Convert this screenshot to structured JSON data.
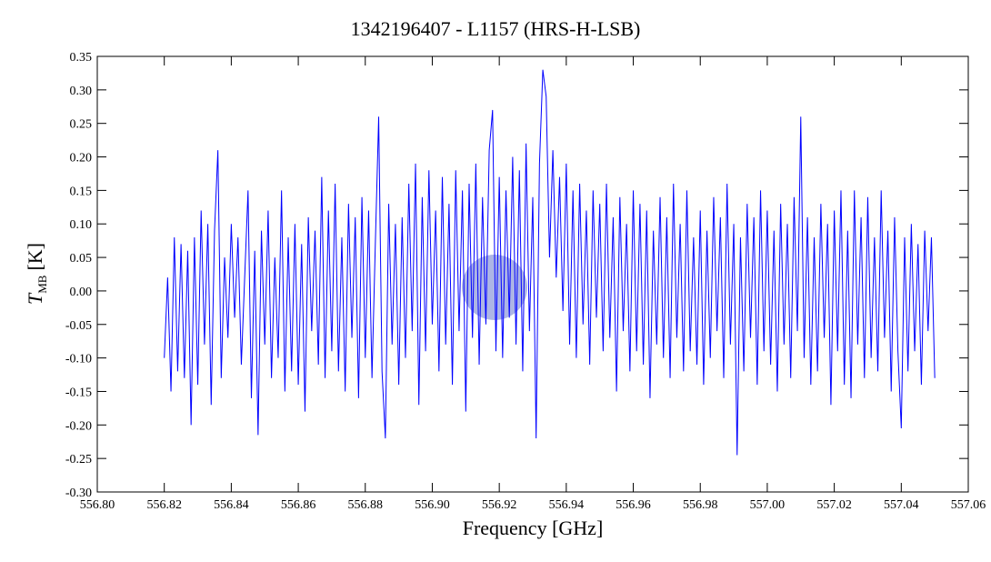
{
  "chart_data": {
    "type": "line",
    "title": "1342196407 - L1157 (HRS-H-LSB)",
    "xlabel": "Frequency [GHz]",
    "ylabel": "T",
    "ylabel_sub": "MB",
    "ylabel_unit": "[K]",
    "xlim": [
      556.8,
      557.06
    ],
    "ylim": [
      -0.3,
      0.35
    ],
    "xticks": [
      {
        "value": 556.8,
        "label": "556.80"
      },
      {
        "value": 556.82,
        "label": "556.82"
      },
      {
        "value": 556.84,
        "label": "556.84"
      },
      {
        "value": 556.86,
        "label": "556.86"
      },
      {
        "value": 556.88,
        "label": "556.88"
      },
      {
        "value": 556.9,
        "label": "556.90"
      },
      {
        "value": 556.92,
        "label": "556.92"
      },
      {
        "value": 556.94,
        "label": "556.94"
      },
      {
        "value": 556.96,
        "label": "556.96"
      },
      {
        "value": 556.98,
        "label": "556.98"
      },
      {
        "value": 557,
        "label": "557.00"
      },
      {
        "value": 557.02,
        "label": "557.02"
      },
      {
        "value": 557.04,
        "label": "557.04"
      },
      {
        "value": 557.06,
        "label": "557.06"
      }
    ],
    "yticks": [
      {
        "value": -0.3,
        "label": "-0.30"
      },
      -0.25,
      {
        "value": -0.2,
        "label": "-0.20"
      },
      -0.15,
      {
        "value": -0.1,
        "label": "-0.10"
      },
      -0.05,
      {
        "value": 0,
        "label": "0.00"
      },
      0.05,
      {
        "value": 0.1,
        "label": "0.10"
      },
      0.15,
      {
        "value": 0.2,
        "label": "0.20"
      },
      0.25,
      {
        "value": 0.3,
        "label": "0.30"
      },
      0.35
    ],
    "x": [
      556.82,
      556.821,
      556.822,
      556.823,
      556.824,
      556.825,
      556.826,
      556.827,
      556.828,
      556.829,
      556.83,
      556.831,
      556.832,
      556.833,
      556.834,
      556.835,
      556.836,
      556.837,
      556.838,
      556.839,
      556.84,
      556.841,
      556.842,
      556.843,
      556.844,
      556.845,
      556.846,
      556.847,
      556.848,
      556.849,
      556.85,
      556.851,
      556.852,
      556.853,
      556.854,
      556.855,
      556.856,
      556.857,
      556.858,
      556.859,
      556.86,
      556.861,
      556.862,
      556.863,
      556.864,
      556.865,
      556.866,
      556.867,
      556.868,
      556.869,
      556.87,
      556.871,
      556.872,
      556.873,
      556.874,
      556.875,
      556.876,
      556.877,
      556.878,
      556.879,
      556.88,
      556.881,
      556.882,
      556.883,
      556.884,
      556.885,
      556.886,
      556.887,
      556.888,
      556.889,
      556.89,
      556.891,
      556.892,
      556.893,
      556.894,
      556.895,
      556.896,
      556.897,
      556.898,
      556.899,
      556.9,
      556.901,
      556.902,
      556.903,
      556.904,
      556.905,
      556.906,
      556.907,
      556.908,
      556.909,
      556.91,
      556.911,
      556.912,
      556.913,
      556.914,
      556.915,
      556.916,
      556.917,
      556.918,
      556.919,
      556.92,
      556.921,
      556.922,
      556.923,
      556.924,
      556.925,
      556.926,
      556.927,
      556.928,
      556.929,
      556.93,
      556.931,
      556.932,
      556.933,
      556.934,
      556.935,
      556.936,
      556.937,
      556.938,
      556.939,
      556.94,
      556.941,
      556.942,
      556.943,
      556.944,
      556.945,
      556.946,
      556.947,
      556.948,
      556.949,
      556.95,
      556.951,
      556.952,
      556.953,
      556.954,
      556.955,
      556.956,
      556.957,
      556.958,
      556.959,
      556.96,
      556.961,
      556.962,
      556.963,
      556.964,
      556.965,
      556.966,
      556.967,
      556.968,
      556.969,
      556.97,
      556.971,
      556.972,
      556.973,
      556.974,
      556.975,
      556.976,
      556.977,
      556.978,
      556.979,
      556.98,
      556.981,
      556.982,
      556.983,
      556.984,
      556.985,
      556.986,
      556.987,
      556.988,
      556.989,
      556.99,
      556.991,
      556.992,
      556.993,
      556.994,
      556.995,
      556.996,
      556.997,
      556.998,
      556.999,
      557,
      557.001,
      557.002,
      557.003,
      557.004,
      557.005,
      557.006,
      557.007,
      557.008,
      557.009,
      557.01,
      557.011,
      557.012,
      557.013,
      557.014,
      557.015,
      557.016,
      557.017,
      557.018,
      557.019,
      557.02,
      557.021,
      557.022,
      557.023,
      557.024,
      557.025,
      557.026,
      557.027,
      557.028,
      557.029,
      557.03,
      557.031,
      557.032,
      557.033,
      557.034,
      557.035,
      557.036,
      557.037,
      557.038,
      557.039,
      557.04,
      557.041,
      557.042,
      557.043,
      557.044,
      557.045,
      557.046,
      557.047,
      557.048,
      557.049,
      557.05
    ],
    "series": [
      {
        "color": "#0000ff",
        "values": [
          -0.1,
          0.02,
          -0.15,
          0.08,
          -0.12,
          0.07,
          -0.13,
          0.06,
          -0.2,
          0.08,
          -0.14,
          0.12,
          -0.08,
          0.1,
          -0.17,
          0.09,
          0.21,
          -0.13,
          0.05,
          -0.07,
          0.1,
          -0.04,
          0.08,
          -0.11,
          0.02,
          0.15,
          -0.16,
          0.06,
          -0.215,
          0.09,
          -0.08,
          0.12,
          -0.13,
          0.05,
          -0.1,
          0.15,
          -0.15,
          0.08,
          -0.12,
          0.1,
          -0.14,
          0.07,
          -0.18,
          0.11,
          -0.06,
          0.09,
          -0.11,
          0.17,
          -0.13,
          0.12,
          -0.09,
          0.16,
          -0.12,
          0.08,
          -0.15,
          0.13,
          -0.07,
          0.11,
          -0.16,
          0.14,
          -0.1,
          0.12,
          -0.13,
          0.07,
          0.26,
          -0.12,
          -0.22,
          0.13,
          -0.08,
          0.1,
          -0.14,
          0.11,
          -0.1,
          0.16,
          -0.06,
          0.19,
          -0.17,
          0.14,
          -0.09,
          0.18,
          -0.05,
          0.12,
          -0.12,
          0.17,
          -0.08,
          0.13,
          -0.14,
          0.18,
          -0.06,
          0.15,
          -0.18,
          0.16,
          -0.07,
          0.19,
          -0.11,
          0.14,
          -0.05,
          0.21,
          0.27,
          -0.09,
          0.17,
          -0.1,
          0.15,
          -0.04,
          0.2,
          -0.08,
          0.18,
          -0.12,
          0.22,
          -0.06,
          0.14,
          -0.22,
          0.19,
          0.33,
          0.29,
          0.05,
          0.21,
          0.02,
          0.17,
          -0.03,
          0.19,
          -0.08,
          0.15,
          -0.1,
          0.16,
          -0.05,
          0.12,
          -0.11,
          0.15,
          -0.04,
          0.13,
          -0.09,
          0.16,
          -0.07,
          0.11,
          -0.15,
          0.14,
          -0.06,
          0.1,
          -0.12,
          0.15,
          -0.09,
          0.13,
          -0.11,
          0.12,
          -0.16,
          0.09,
          -0.08,
          0.14,
          -0.1,
          0.11,
          -0.13,
          0.16,
          -0.07,
          0.1,
          -0.12,
          0.15,
          -0.09,
          0.08,
          -0.11,
          0.12,
          -0.14,
          0.09,
          -0.1,
          0.14,
          -0.06,
          0.11,
          -0.13,
          0.16,
          -0.08,
          0.1,
          -0.245,
          0.08,
          -0.12,
          0.13,
          -0.07,
          0.11,
          -0.14,
          0.15,
          -0.09,
          0.12,
          -0.11,
          0.09,
          -0.15,
          0.13,
          -0.08,
          0.1,
          -0.13,
          0.14,
          -0.06,
          0.26,
          -0.1,
          0.11,
          -0.14,
          0.08,
          -0.12,
          0.13,
          -0.07,
          0.1,
          -0.17,
          0.12,
          -0.09,
          0.15,
          -0.14,
          0.09,
          -0.16,
          0.15,
          -0.08,
          0.11,
          -0.13,
          0.14,
          -0.1,
          0.08,
          -0.12,
          0.15,
          -0.07,
          0.09,
          -0.15,
          0.11,
          -0.09,
          -0.205,
          0.08,
          -0.12,
          0.1,
          -0.09,
          0.07,
          -0.14,
          0.09,
          -0.06,
          0.08,
          -0.13
        ]
      }
    ]
  }
}
